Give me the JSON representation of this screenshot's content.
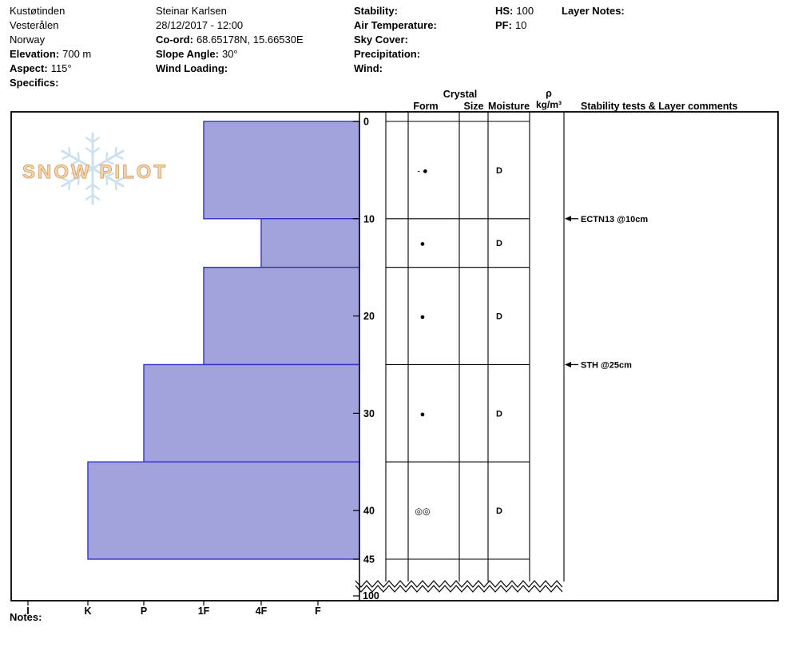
{
  "header": {
    "site": {
      "name": "Kustøtinden",
      "region": "Vesterålen",
      "country": "Norway",
      "elevation_label": "Elevation:",
      "elevation_value": "700 m",
      "aspect_label": "Aspect:",
      "aspect_value": "115°",
      "specifics_label": "Specifics:"
    },
    "observer": {
      "name": "Steinar Karlsen",
      "datetime": "28/12/2017 - 12:00",
      "coord_label": "Co-ord:",
      "coord_value": "68.65178N, 15.66530E",
      "slope_label": "Slope Angle:",
      "slope_value": "30°",
      "wind_loading_label": "Wind Loading:"
    },
    "weather": {
      "stability_label": "Stability:",
      "air_temp_label": "Air Temperature:",
      "sky_label": "Sky Cover:",
      "precip_label": "Precipitation:",
      "wind_label": "Wind:"
    },
    "totals": {
      "hs_label": "HS:",
      "hs_value": "100",
      "pf_label": "PF:",
      "pf_value": "10"
    },
    "layer_notes_label": "Layer Notes:",
    "notes_label": "Notes:"
  },
  "chart_data": {
    "type": "bar",
    "subtype": "snow-profile-hardness",
    "hardness_scale": [
      "I",
      "K",
      "P",
      "1F",
      "4F",
      "F"
    ],
    "depth_ticks": [
      0,
      10,
      20,
      30,
      40,
      45
    ],
    "total_depth_label": "100",
    "layers": [
      {
        "top_cm": 0,
        "bottom_cm": 10,
        "hardness": "1F",
        "grain_form": "- ●",
        "grain_size": "",
        "moisture": "D"
      },
      {
        "top_cm": 10,
        "bottom_cm": 15,
        "hardness": "4F",
        "grain_form": "●",
        "grain_size": "",
        "moisture": "D"
      },
      {
        "top_cm": 15,
        "bottom_cm": 25,
        "hardness": "1F",
        "grain_form": "●",
        "grain_size": "",
        "moisture": "D"
      },
      {
        "top_cm": 25,
        "bottom_cm": 35,
        "hardness": "P",
        "grain_form": "●",
        "grain_size": "",
        "moisture": "D"
      },
      {
        "top_cm": 35,
        "bottom_cm": 45,
        "hardness": "K",
        "grain_form": "◎◎",
        "grain_size": "",
        "moisture": "D"
      }
    ],
    "stability_tests": [
      {
        "label": "ECTN13 @10cm",
        "depth_cm": 10
      },
      {
        "label": "STH @25cm",
        "depth_cm": 25
      }
    ],
    "columns": {
      "crystal": "Crystal",
      "form": "Form",
      "size": "Size",
      "moisture": "Moisture",
      "density_rho": "ρ",
      "density_unit": "kg/m³",
      "comments": "Stability tests & Layer comments"
    },
    "colors": {
      "bar_fill": "#A2A2DC",
      "bar_stroke": "#3232C8"
    },
    "logo": {
      "text": "SNOW PILOT"
    }
  }
}
